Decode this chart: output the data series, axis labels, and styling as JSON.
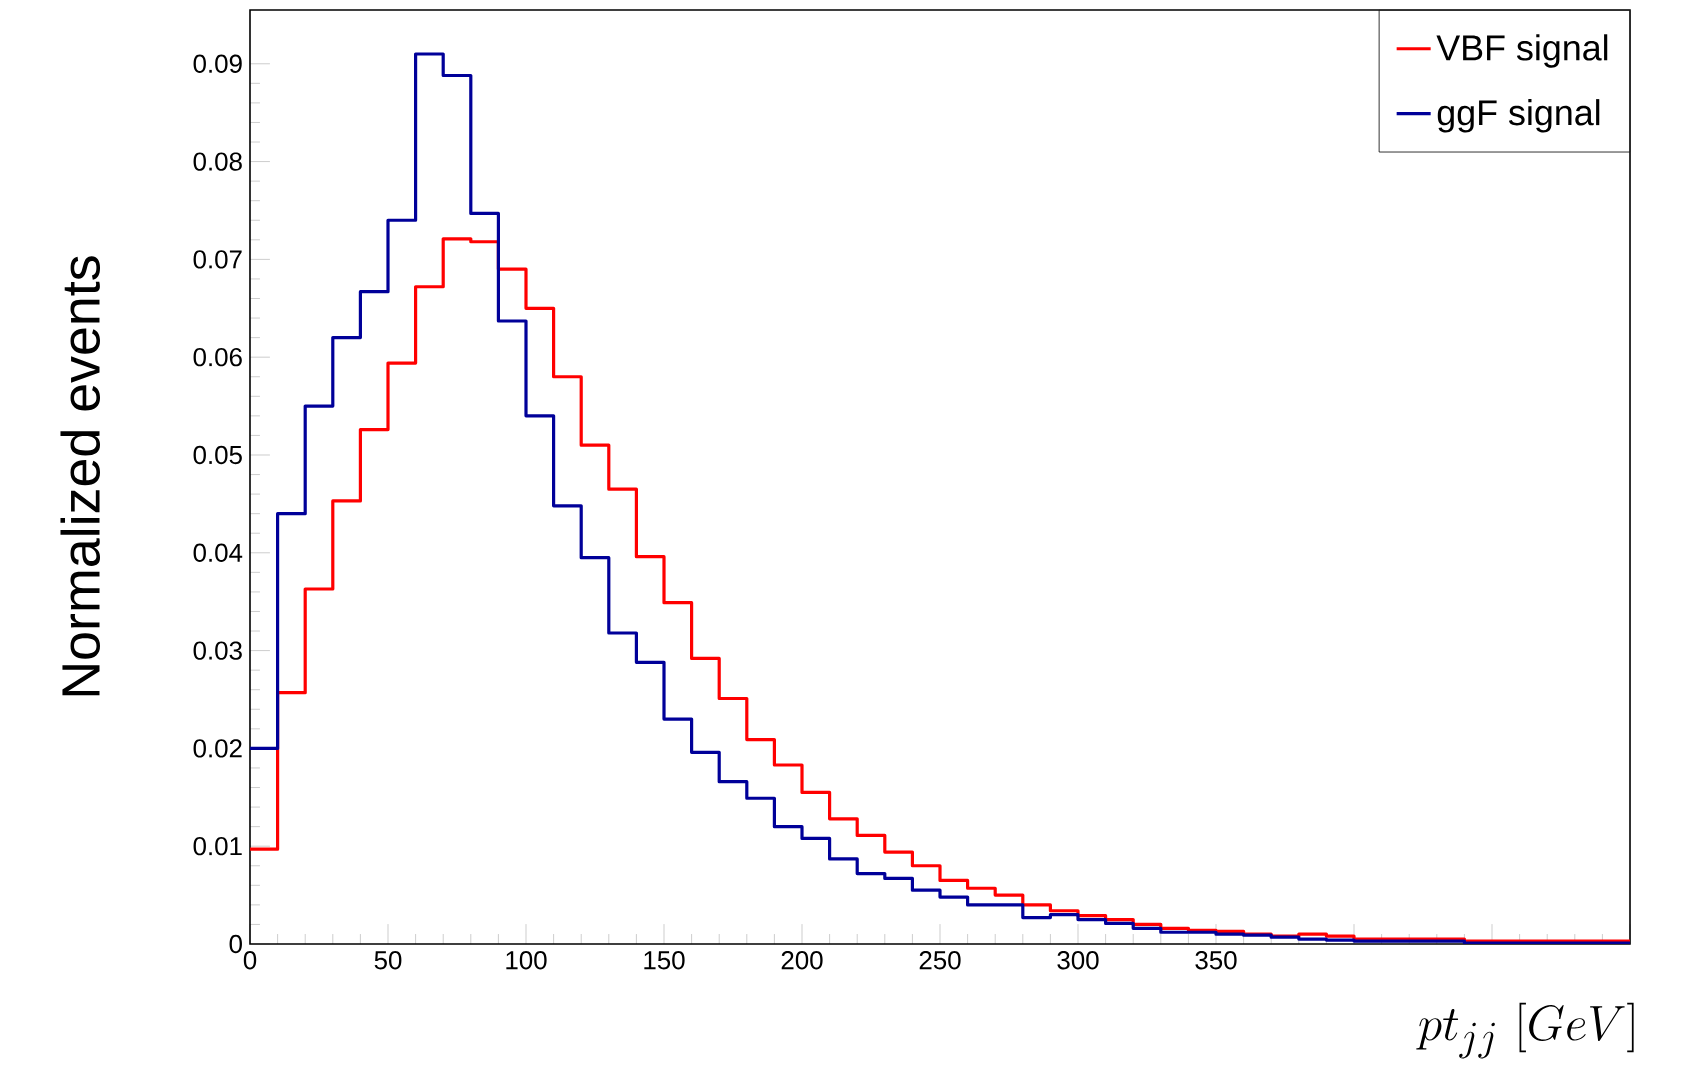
{
  "chart_data": {
    "type": "histogram",
    "xlabel": "pt_{jj}\\ [GeV]",
    "ylabel": "Normalized events",
    "bins": [
      0,
      10,
      20,
      30,
      40,
      50,
      60,
      70,
      80,
      90,
      100,
      110,
      120,
      130,
      140,
      150,
      160,
      170,
      180,
      190,
      200,
      210,
      220,
      230,
      240,
      250,
      260,
      270,
      280,
      290,
      300,
      310,
      320,
      330,
      340,
      350,
      360,
      370,
      380,
      390,
      400,
      410,
      420,
      430,
      440,
      450,
      460,
      470,
      480,
      490,
      500
    ],
    "series": [
      {
        "name": "VBF signal",
        "color": "#ff0000",
        "values": [
          0.0097,
          0.0257,
          0.0363,
          0.0453,
          0.0526,
          0.0594,
          0.0672,
          0.0721,
          0.0718,
          0.069,
          0.065,
          0.058,
          0.051,
          0.0465,
          0.0396,
          0.0349,
          0.0292,
          0.0251,
          0.0209,
          0.0183,
          0.0155,
          0.0128,
          0.0111,
          0.0094,
          0.008,
          0.0065,
          0.0057,
          0.005,
          0.004,
          0.0034,
          0.0029,
          0.0025,
          0.002,
          0.0016,
          0.0014,
          0.0013,
          0.001,
          0.0008,
          0.001,
          0.0008,
          0.0005,
          0.0005,
          0.0005,
          0.0005,
          0.0003,
          0.0003,
          0.0003,
          0.0003,
          0.0003,
          0.0003
        ]
      },
      {
        "name": "ggF signal",
        "color": "#000099",
        "values": [
          0.02,
          0.044,
          0.055,
          0.062,
          0.0667,
          0.074,
          0.091,
          0.0888,
          0.0747,
          0.0637,
          0.054,
          0.0448,
          0.0395,
          0.0318,
          0.0288,
          0.023,
          0.0196,
          0.0166,
          0.0149,
          0.012,
          0.0108,
          0.0087,
          0.0072,
          0.0067,
          0.0055,
          0.0048,
          0.004,
          0.004,
          0.0027,
          0.003,
          0.0025,
          0.0021,
          0.0016,
          0.0012,
          0.0012,
          0.001,
          0.0009,
          0.0007,
          0.0005,
          0.0004,
          0.0003,
          0.0003,
          0.0003,
          0.0003,
          0.0001,
          0.0001,
          0.0001,
          0.0001,
          0.0001,
          0.0001
        ]
      }
    ],
    "xlim": [
      0,
      500
    ],
    "ylim": [
      0,
      0.0955
    ],
    "xticks": [
      0,
      50,
      100,
      150,
      200,
      250,
      300,
      350,
      {
        "value": 400,
        "label": null
      },
      {
        "value": 450,
        "label": null
      },
      {
        "value": 500,
        "label": null
      }
    ],
    "yticks": [
      0,
      0.01,
      0.02,
      0.03,
      0.04,
      0.05,
      0.06,
      0.07,
      0.08,
      0.09
    ],
    "grid": false,
    "legend": "top right"
  }
}
